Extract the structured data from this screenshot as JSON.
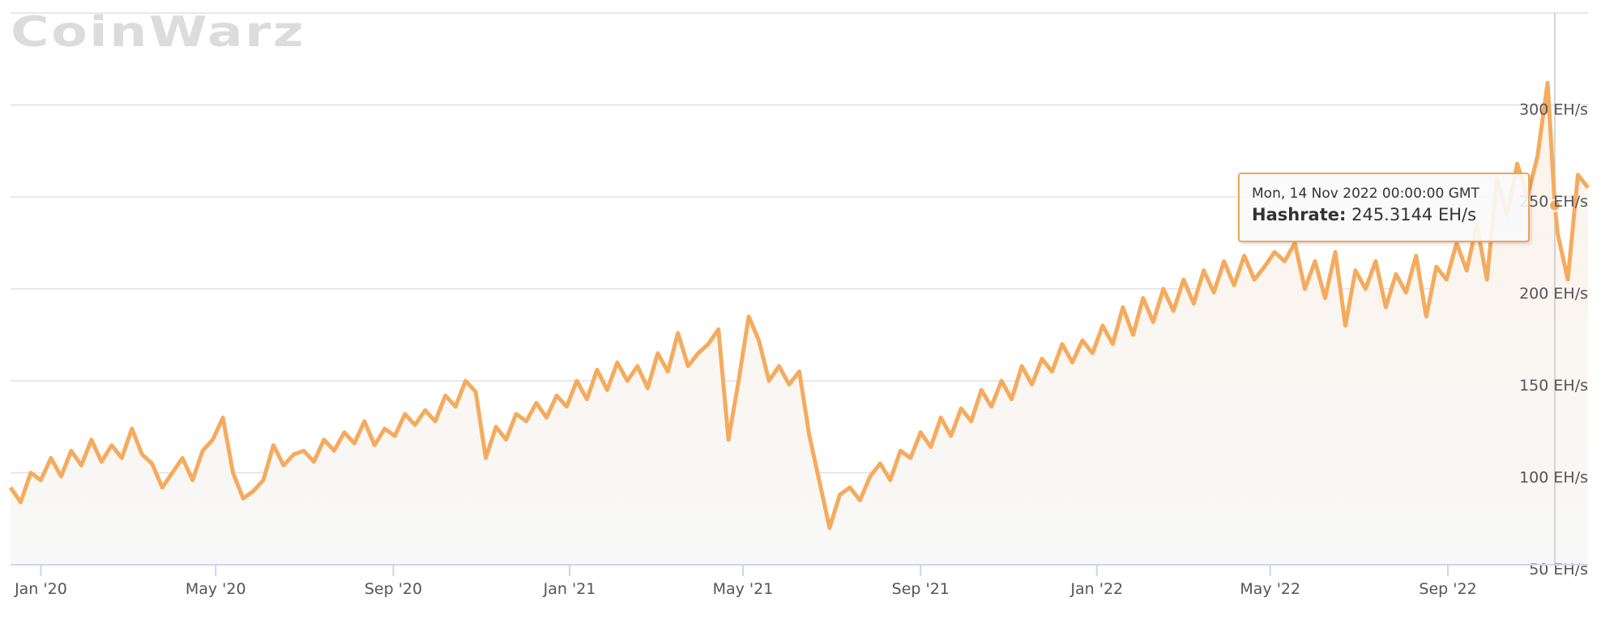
{
  "logo_text": "CoinWarz",
  "tooltip": {
    "date": "Mon, 14 Nov 2022 00:00:00 GMT",
    "label": "Hashrate:",
    "value": "245.3144 EH/s"
  },
  "colors": {
    "line": "#f5ab5e",
    "fill": "#f7f5f4",
    "grid": "#dde0e6",
    "tooltip_border": "#f0a45a"
  },
  "chart_data": {
    "type": "area",
    "title": "",
    "xlabel": "",
    "ylabel": "",
    "grid": true,
    "legend": "none",
    "ylim": [
      50,
      350
    ],
    "xlim": [
      "2019-12-11",
      "2022-12-07"
    ],
    "y_ticks": [
      {
        "value": 50,
        "label": "50 EH/s"
      },
      {
        "value": 100,
        "label": "100 EH/s"
      },
      {
        "value": 150,
        "label": "150 EH/s"
      },
      {
        "value": 200,
        "label": "200 EH/s"
      },
      {
        "value": 250,
        "label": "250 EH/s"
      },
      {
        "value": 300,
        "label": "300 EH/s"
      },
      {
        "value": 350,
        "label": ""
      }
    ],
    "x_ticks": [
      {
        "date": "2020-01-01",
        "label": "Jan '20"
      },
      {
        "date": "2020-05-01",
        "label": "May '20"
      },
      {
        "date": "2020-09-01",
        "label": "Sep '20"
      },
      {
        "date": "2021-01-01",
        "label": "Jan '21"
      },
      {
        "date": "2021-05-01",
        "label": "May '21"
      },
      {
        "date": "2021-09-01",
        "label": "Sep '21"
      },
      {
        "date": "2022-01-01",
        "label": "Jan '22"
      },
      {
        "date": "2022-05-01",
        "label": "May '22"
      },
      {
        "date": "2022-09-01",
        "label": "Sep '22"
      }
    ],
    "highlight": {
      "date": "2022-11-14",
      "value": 245.3144
    },
    "series": [
      {
        "name": "Hashrate",
        "points": [
          [
            "2019-12-11",
            92
          ],
          [
            "2019-12-18",
            84
          ],
          [
            "2019-12-25",
            100
          ],
          [
            "2020-01-01",
            96
          ],
          [
            "2020-01-08",
            108
          ],
          [
            "2020-01-15",
            98
          ],
          [
            "2020-01-22",
            112
          ],
          [
            "2020-01-29",
            104
          ],
          [
            "2020-02-05",
            118
          ],
          [
            "2020-02-12",
            106
          ],
          [
            "2020-02-19",
            115
          ],
          [
            "2020-02-26",
            108
          ],
          [
            "2020-03-04",
            124
          ],
          [
            "2020-03-11",
            110
          ],
          [
            "2020-03-18",
            105
          ],
          [
            "2020-03-25",
            92
          ],
          [
            "2020-04-01",
            100
          ],
          [
            "2020-04-08",
            108
          ],
          [
            "2020-04-15",
            96
          ],
          [
            "2020-04-22",
            112
          ],
          [
            "2020-04-29",
            118
          ],
          [
            "2020-05-06",
            130
          ],
          [
            "2020-05-13",
            100
          ],
          [
            "2020-05-20",
            86
          ],
          [
            "2020-05-27",
            90
          ],
          [
            "2020-06-03",
            96
          ],
          [
            "2020-06-10",
            115
          ],
          [
            "2020-06-17",
            104
          ],
          [
            "2020-06-24",
            110
          ],
          [
            "2020-07-01",
            112
          ],
          [
            "2020-07-08",
            106
          ],
          [
            "2020-07-15",
            118
          ],
          [
            "2020-07-22",
            112
          ],
          [
            "2020-07-29",
            122
          ],
          [
            "2020-08-05",
            116
          ],
          [
            "2020-08-12",
            128
          ],
          [
            "2020-08-19",
            115
          ],
          [
            "2020-08-26",
            124
          ],
          [
            "2020-09-02",
            120
          ],
          [
            "2020-09-09",
            132
          ],
          [
            "2020-09-16",
            126
          ],
          [
            "2020-09-23",
            134
          ],
          [
            "2020-09-30",
            128
          ],
          [
            "2020-10-07",
            142
          ],
          [
            "2020-10-14",
            136
          ],
          [
            "2020-10-21",
            150
          ],
          [
            "2020-10-28",
            144
          ],
          [
            "2020-11-04",
            108
          ],
          [
            "2020-11-11",
            125
          ],
          [
            "2020-11-18",
            118
          ],
          [
            "2020-11-25",
            132
          ],
          [
            "2020-12-02",
            128
          ],
          [
            "2020-12-09",
            138
          ],
          [
            "2020-12-16",
            130
          ],
          [
            "2020-12-23",
            142
          ],
          [
            "2020-12-30",
            136
          ],
          [
            "2021-01-06",
            150
          ],
          [
            "2021-01-13",
            140
          ],
          [
            "2021-01-20",
            156
          ],
          [
            "2021-01-27",
            145
          ],
          [
            "2021-02-03",
            160
          ],
          [
            "2021-02-10",
            150
          ],
          [
            "2021-02-17",
            158
          ],
          [
            "2021-02-24",
            146
          ],
          [
            "2021-03-03",
            165
          ],
          [
            "2021-03-10",
            155
          ],
          [
            "2021-03-17",
            176
          ],
          [
            "2021-03-24",
            158
          ],
          [
            "2021-03-31",
            165
          ],
          [
            "2021-04-07",
            170
          ],
          [
            "2021-04-14",
            178
          ],
          [
            "2021-04-21",
            118
          ],
          [
            "2021-04-28",
            150
          ],
          [
            "2021-05-05",
            185
          ],
          [
            "2021-05-12",
            172
          ],
          [
            "2021-05-19",
            150
          ],
          [
            "2021-05-26",
            158
          ],
          [
            "2021-06-02",
            148
          ],
          [
            "2021-06-09",
            155
          ],
          [
            "2021-06-16",
            120
          ],
          [
            "2021-06-23",
            95
          ],
          [
            "2021-06-30",
            70
          ],
          [
            "2021-07-07",
            88
          ],
          [
            "2021-07-14",
            92
          ],
          [
            "2021-07-21",
            85
          ],
          [
            "2021-07-28",
            98
          ],
          [
            "2021-08-04",
            105
          ],
          [
            "2021-08-11",
            96
          ],
          [
            "2021-08-18",
            112
          ],
          [
            "2021-08-25",
            108
          ],
          [
            "2021-09-01",
            122
          ],
          [
            "2021-09-08",
            114
          ],
          [
            "2021-09-15",
            130
          ],
          [
            "2021-09-22",
            120
          ],
          [
            "2021-09-29",
            135
          ],
          [
            "2021-10-06",
            128
          ],
          [
            "2021-10-13",
            145
          ],
          [
            "2021-10-20",
            136
          ],
          [
            "2021-10-27",
            150
          ],
          [
            "2021-11-03",
            140
          ],
          [
            "2021-11-10",
            158
          ],
          [
            "2021-11-17",
            148
          ],
          [
            "2021-11-24",
            162
          ],
          [
            "2021-12-01",
            155
          ],
          [
            "2021-12-08",
            170
          ],
          [
            "2021-12-15",
            160
          ],
          [
            "2021-12-22",
            172
          ],
          [
            "2021-12-29",
            165
          ],
          [
            "2022-01-05",
            180
          ],
          [
            "2022-01-12",
            170
          ],
          [
            "2022-01-19",
            190
          ],
          [
            "2022-01-26",
            175
          ],
          [
            "2022-02-02",
            195
          ],
          [
            "2022-02-09",
            182
          ],
          [
            "2022-02-16",
            200
          ],
          [
            "2022-02-23",
            188
          ],
          [
            "2022-03-02",
            205
          ],
          [
            "2022-03-09",
            192
          ],
          [
            "2022-03-16",
            210
          ],
          [
            "2022-03-23",
            198
          ],
          [
            "2022-03-30",
            215
          ],
          [
            "2022-04-06",
            202
          ],
          [
            "2022-04-13",
            218
          ],
          [
            "2022-04-20",
            205
          ],
          [
            "2022-04-27",
            212
          ],
          [
            "2022-05-04",
            220
          ],
          [
            "2022-05-11",
            215
          ],
          [
            "2022-05-18",
            225
          ],
          [
            "2022-05-25",
            200
          ],
          [
            "2022-06-01",
            215
          ],
          [
            "2022-06-08",
            195
          ],
          [
            "2022-06-15",
            220
          ],
          [
            "2022-06-22",
            180
          ],
          [
            "2022-06-29",
            210
          ],
          [
            "2022-07-06",
            200
          ],
          [
            "2022-07-13",
            215
          ],
          [
            "2022-07-20",
            190
          ],
          [
            "2022-07-27",
            208
          ],
          [
            "2022-08-03",
            198
          ],
          [
            "2022-08-10",
            218
          ],
          [
            "2022-08-17",
            185
          ],
          [
            "2022-08-24",
            212
          ],
          [
            "2022-08-31",
            205
          ],
          [
            "2022-09-07",
            225
          ],
          [
            "2022-09-14",
            210
          ],
          [
            "2022-09-21",
            235
          ],
          [
            "2022-09-28",
            205
          ],
          [
            "2022-10-05",
            260
          ],
          [
            "2022-10-12",
            240
          ],
          [
            "2022-10-19",
            268
          ],
          [
            "2022-10-26",
            250
          ],
          [
            "2022-11-02",
            272
          ],
          [
            "2022-11-09",
            312
          ],
          [
            "2022-11-14",
            245.3144
          ],
          [
            "2022-11-16",
            230
          ],
          [
            "2022-11-23",
            205
          ],
          [
            "2022-11-30",
            262
          ],
          [
            "2022-12-07",
            255
          ]
        ]
      }
    ]
  }
}
